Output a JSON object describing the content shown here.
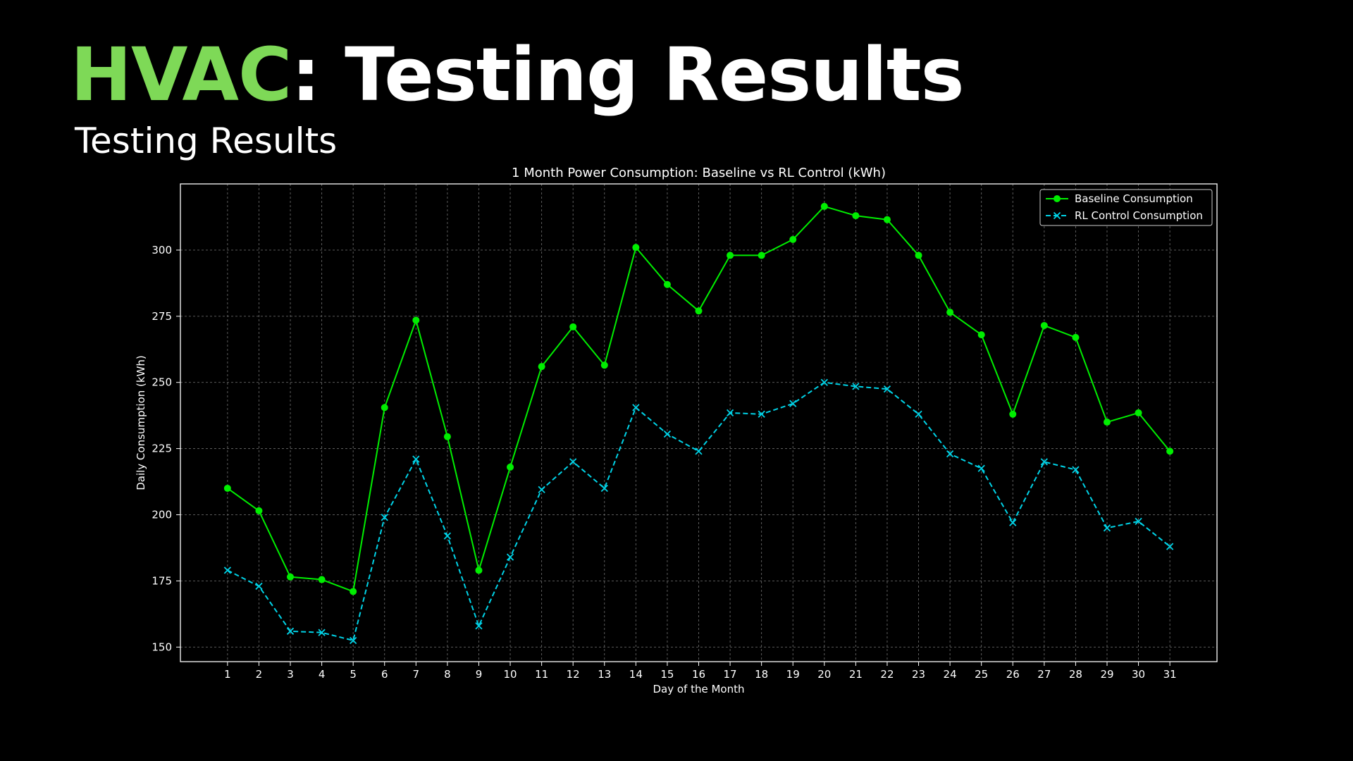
{
  "slide": {
    "title_accent": "HVAC",
    "title_rest": ": Testing Results",
    "subtitle": "Testing Results"
  },
  "colors": {
    "background": "#000000",
    "title_accent": "#7ed957",
    "baseline": "#00ee00",
    "rl_control": "#00d2e6"
  },
  "chart_data": {
    "type": "line",
    "title": "1 Month Power Consumption: Baseline vs RL Control (kWh)",
    "xlabel": "Day of the Month",
    "ylabel": "Daily Consumption (kWh)",
    "x": [
      1,
      2,
      3,
      4,
      5,
      6,
      7,
      8,
      9,
      10,
      11,
      12,
      13,
      14,
      15,
      16,
      17,
      18,
      19,
      20,
      21,
      22,
      23,
      24,
      25,
      26,
      27,
      28,
      29,
      30,
      31
    ],
    "xlim": [
      -0.5,
      32.5
    ],
    "ylim": [
      144.5,
      325
    ],
    "yticks": [
      150,
      175,
      200,
      225,
      250,
      275,
      300
    ],
    "grid": true,
    "legend_position": "top-right",
    "series": [
      {
        "name": "Baseline Consumption",
        "color": "#00ee00",
        "line_style": "solid",
        "marker": "circle",
        "values": [
          210,
          201.5,
          176.5,
          175.5,
          171,
          240.5,
          273.5,
          229.5,
          179,
          218,
          256,
          271,
          256.5,
          301,
          287,
          277,
          298,
          298,
          304,
          316.5,
          313,
          311.5,
          298,
          276.5,
          268,
          238,
          271.5,
          267,
          235,
          238.5,
          224
        ]
      },
      {
        "name": "RL Control Consumption",
        "color": "#00d2e6",
        "line_style": "dashed",
        "marker": "x",
        "values": [
          179,
          173,
          156,
          155.5,
          152.5,
          199,
          221,
          192,
          158,
          184,
          209.5,
          220,
          210,
          240.5,
          230.5,
          224,
          238.5,
          238,
          242,
          250,
          248.5,
          247.5,
          238,
          223,
          217.5,
          197,
          220,
          217,
          195,
          197.5,
          188
        ]
      }
    ]
  }
}
